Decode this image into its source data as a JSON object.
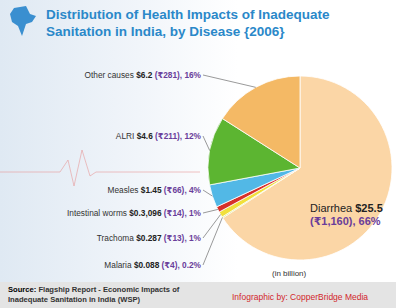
{
  "chart_data": {
    "type": "pie",
    "title": "Distribution of Health Impacts of Inadequate Sanitation in India, by Disease {2006}",
    "categories": [
      "Diarrhea",
      "Malaria",
      "Trachoma",
      "Intestinal worms",
      "Measles",
      "ALRI",
      "Other causes"
    ],
    "values": [
      66,
      0.2,
      1,
      1,
      4,
      12,
      16
    ],
    "value_labels": [
      "$25.5 (₹1,160), 66%",
      "$0.088 (₹4), 0.2%",
      "$0.287 (₹13), 1%",
      "$0.3,096 (₹14), 1%",
      "$1.45 (₹66), 4%",
      "$4.6 (₹211), 12%",
      "$6.2 (₹281), 16%"
    ],
    "colors": [
      "#fbd6a6",
      "#c9d94c",
      "#f1e03c",
      "#d7312a",
      "#52b8e6",
      "#5cb531",
      "#f4b965"
    ],
    "data_labels": true,
    "annotations": [
      "(in billion)"
    ],
    "source": "Source: Flagship Report - Economic Impacts of Inadequate Sanitation in India (WSP)",
    "credit": "Infographic by: CopperBridge Media"
  }
}
